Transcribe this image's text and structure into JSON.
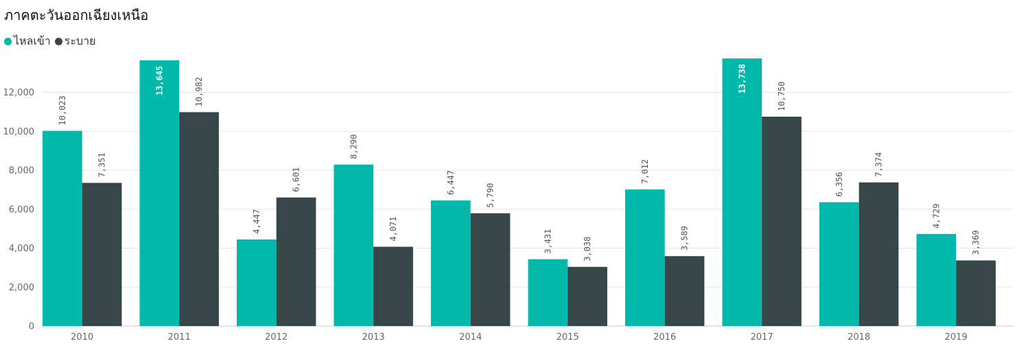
{
  "chart_data": {
    "type": "bar",
    "title": "ภาคตะวันออกเฉียงเหนือ",
    "legend_position": "top-left",
    "grid": true,
    "categories": [
      "2010",
      "2011",
      "2012",
      "2013",
      "2014",
      "2015",
      "2016",
      "2017",
      "2018",
      "2019"
    ],
    "series": [
      {
        "name": "ไหลเข้า",
        "color": "#01B8AA",
        "values": [
          10023,
          13645,
          4447,
          8290,
          6447,
          3431,
          7012,
          13738,
          6356,
          4729
        ],
        "labels": [
          "10,023",
          "13,645",
          "4,447",
          "8,290",
          "6,447",
          "3,431",
          "7,012",
          "13,738",
          "6,356",
          "4,729"
        ]
      },
      {
        "name": "ระบาย",
        "color": "#374649",
        "values": [
          7351,
          10982,
          6601,
          4071,
          5790,
          3038,
          3589,
          10750,
          7374,
          3369
        ],
        "labels": [
          "7,351",
          "10,982",
          "6,601",
          "4,071",
          "5,790",
          "3,038",
          "3,589",
          "10,750",
          "7,374",
          "3,369"
        ]
      }
    ],
    "ylim": [
      0,
      13900
    ],
    "yticks": [
      0,
      2000,
      4000,
      6000,
      8000,
      10000,
      12000
    ],
    "ytick_labels": [
      "0",
      "2,000",
      "4,000",
      "6,000",
      "8,000",
      "10,000",
      "12,000"
    ]
  }
}
